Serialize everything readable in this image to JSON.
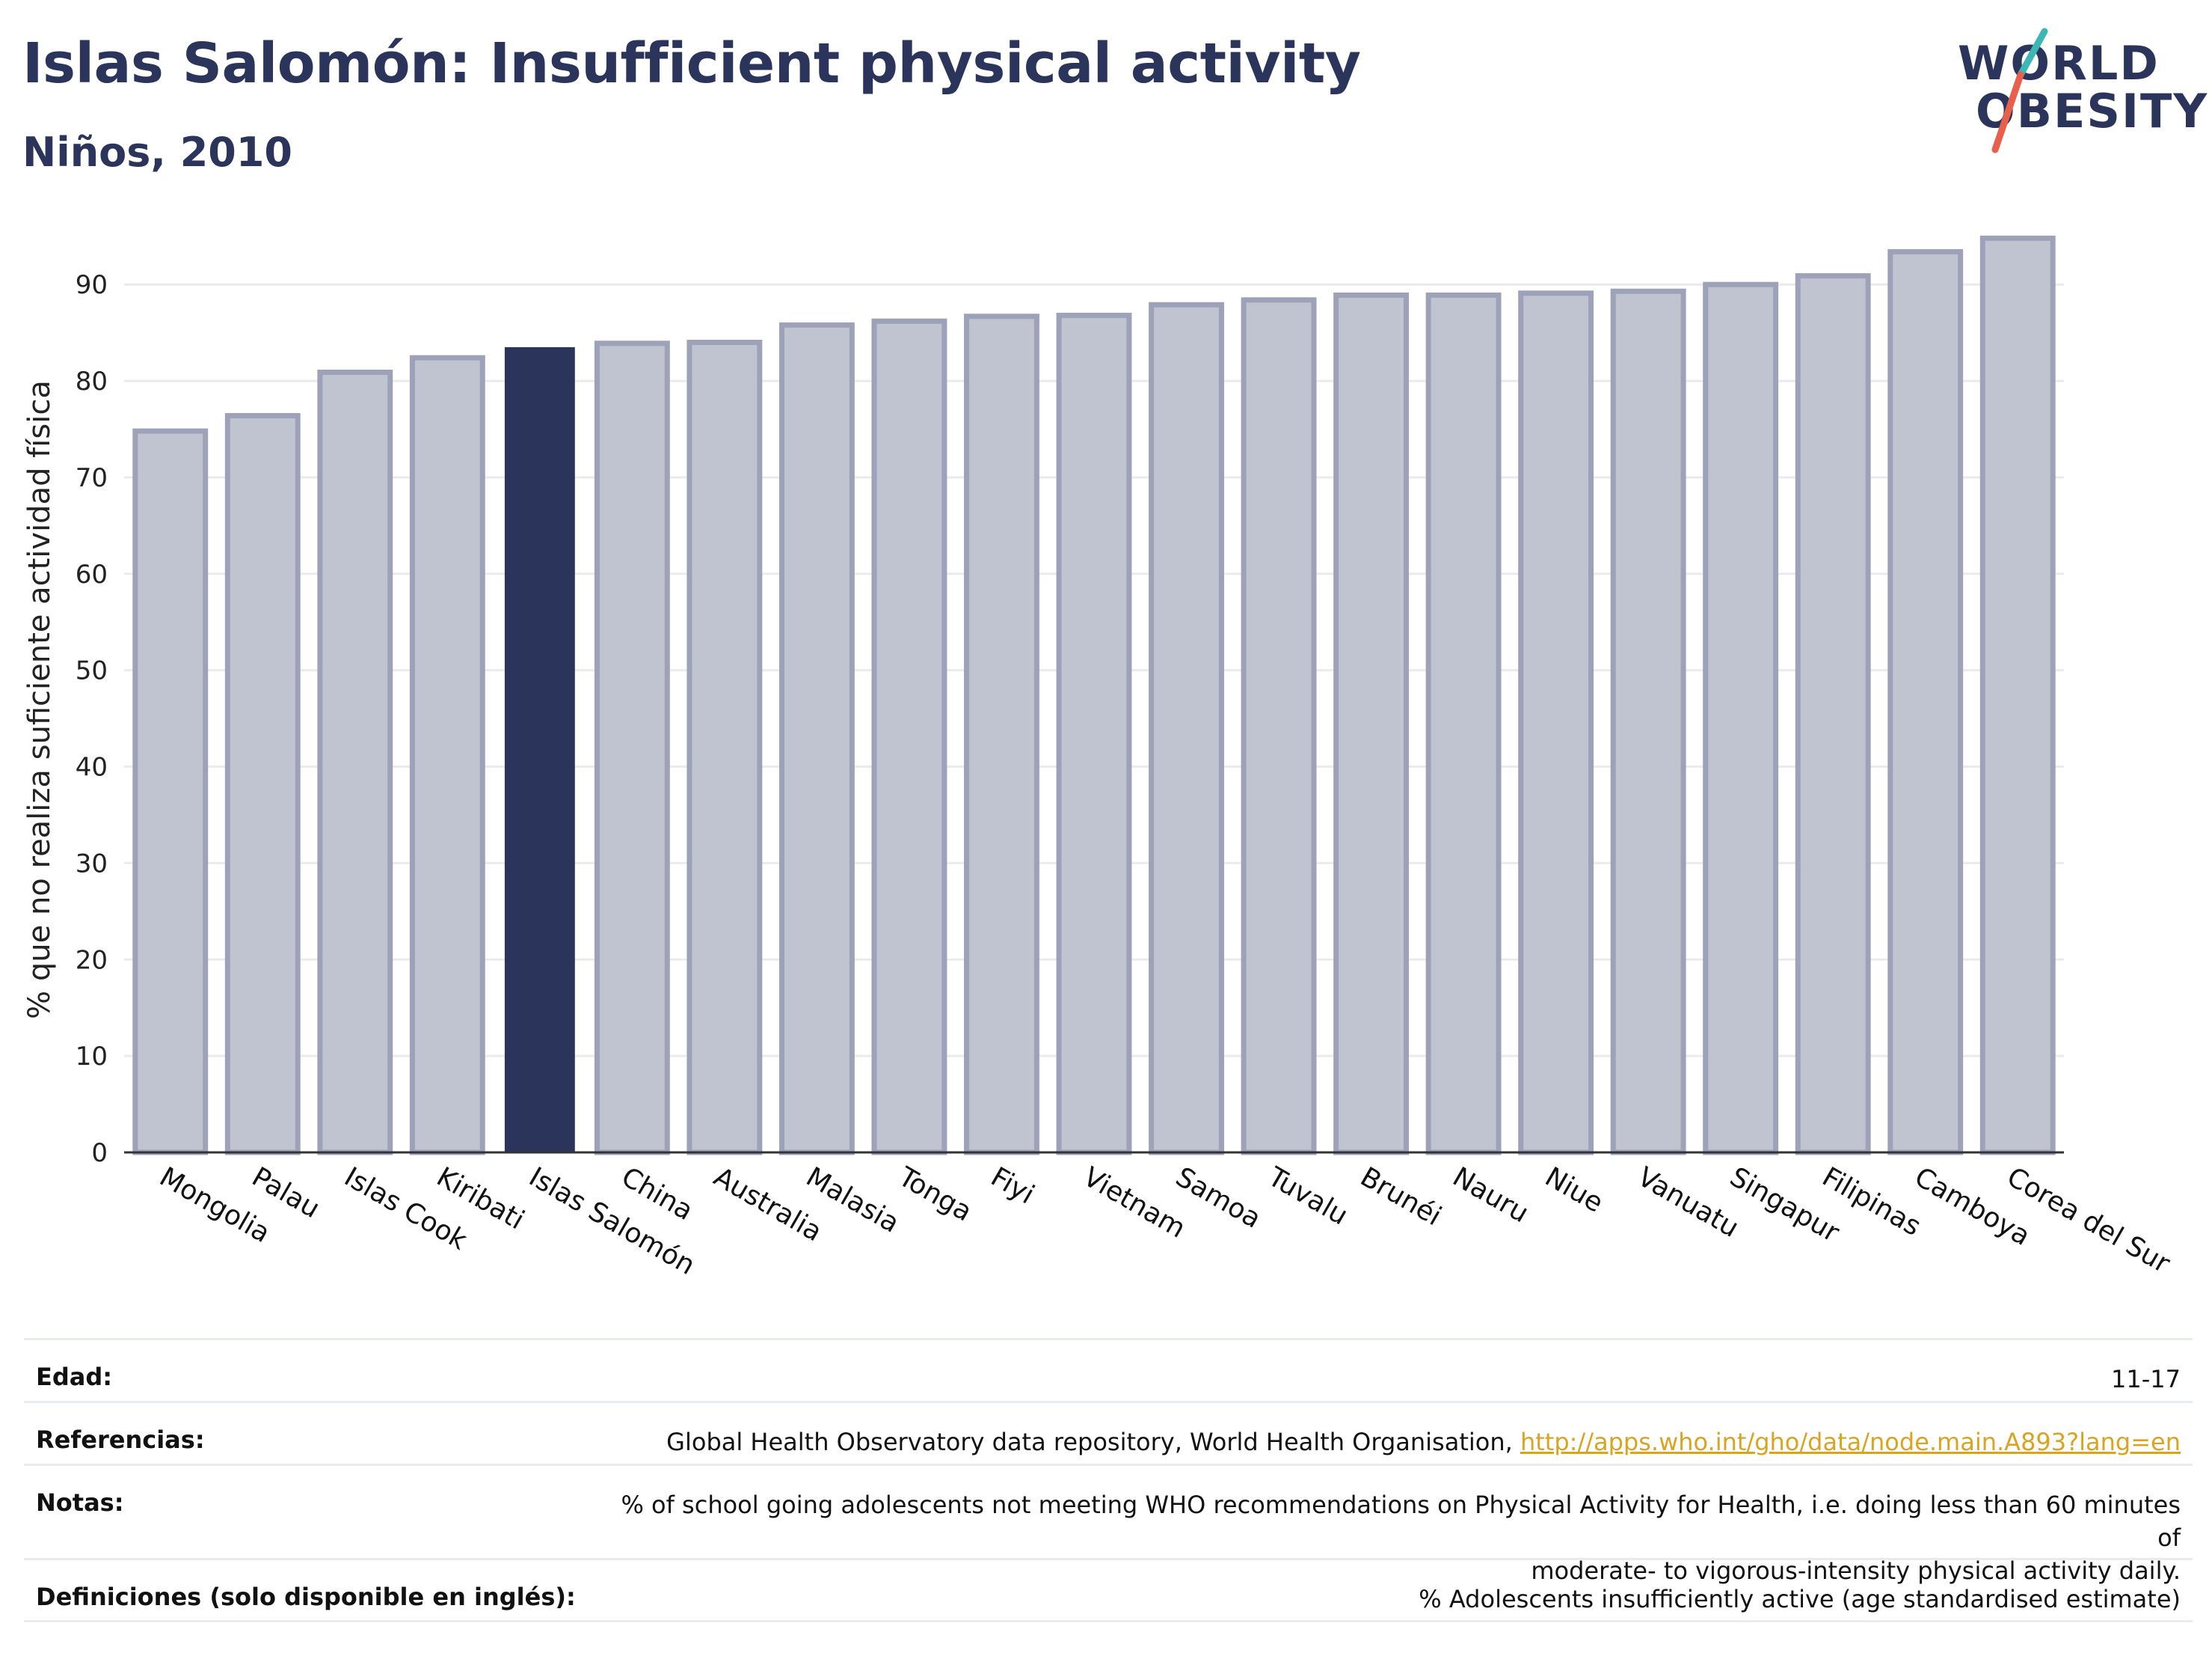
{
  "header": {
    "title": "Islas Salomón: Insufficient physical activity",
    "subtitle": "Niños, 2010"
  },
  "logo": {
    "line1": "WORLD",
    "line2": "OBESITY",
    "accent_teal": "#3db7b3",
    "accent_red": "#e8604c"
  },
  "colors": {
    "bar": "#c0c3d0",
    "bar_border": "#9da2b8",
    "highlight": "#2b345a",
    "grid": "#ebebeb"
  },
  "chart_data": {
    "type": "bar",
    "title": "",
    "xlabel": "",
    "ylabel": "% que no realiza suficiente actividad física",
    "ylim": [
      0,
      97
    ],
    "yticks": [
      0,
      10,
      20,
      30,
      40,
      50,
      60,
      70,
      80,
      90
    ],
    "grid": true,
    "highlight": "Islas Salomón",
    "categories": [
      "Mongolia",
      "Palau",
      "Islas Cook",
      "Kiribati",
      "Islas Salomón",
      "China",
      "Australia",
      "Malasia",
      "Tonga",
      "Fiyi",
      "Vietnam",
      "Samoa",
      "Tuvalu",
      "Brunéi",
      "Nauru",
      "Niue",
      "Vanuatu",
      "Singapur",
      "Filipinas",
      "Camboya",
      "Corea del Sur"
    ],
    "values": [
      74.8,
      76.4,
      80.9,
      82.4,
      83.5,
      83.9,
      84.0,
      85.8,
      86.2,
      86.7,
      86.8,
      87.9,
      88.4,
      88.9,
      88.9,
      89.1,
      89.3,
      90.0,
      90.9,
      93.4,
      94.8
    ]
  },
  "meta": {
    "age_label": "Edad:",
    "age_value": "11-17",
    "refs_label": "Referencias:",
    "refs_text": "Global Health Observatory data repository, World Health Organisation,",
    "refs_link": "http://apps.who.int/gho/data/node.main.A893?lang=en",
    "notes_label": "Notas:",
    "notes_line1": "% of school going adolescents not meeting WHO recommendations on Physical Activity for Health, i.e. doing less than 60 minutes of",
    "notes_line2": "moderate- to vigorous-intensity physical activity daily.",
    "defs_label": "Definiciones (solo disponible en inglés):",
    "defs_text": "% Adolescents insufficiently active (age standardised estimate)"
  }
}
